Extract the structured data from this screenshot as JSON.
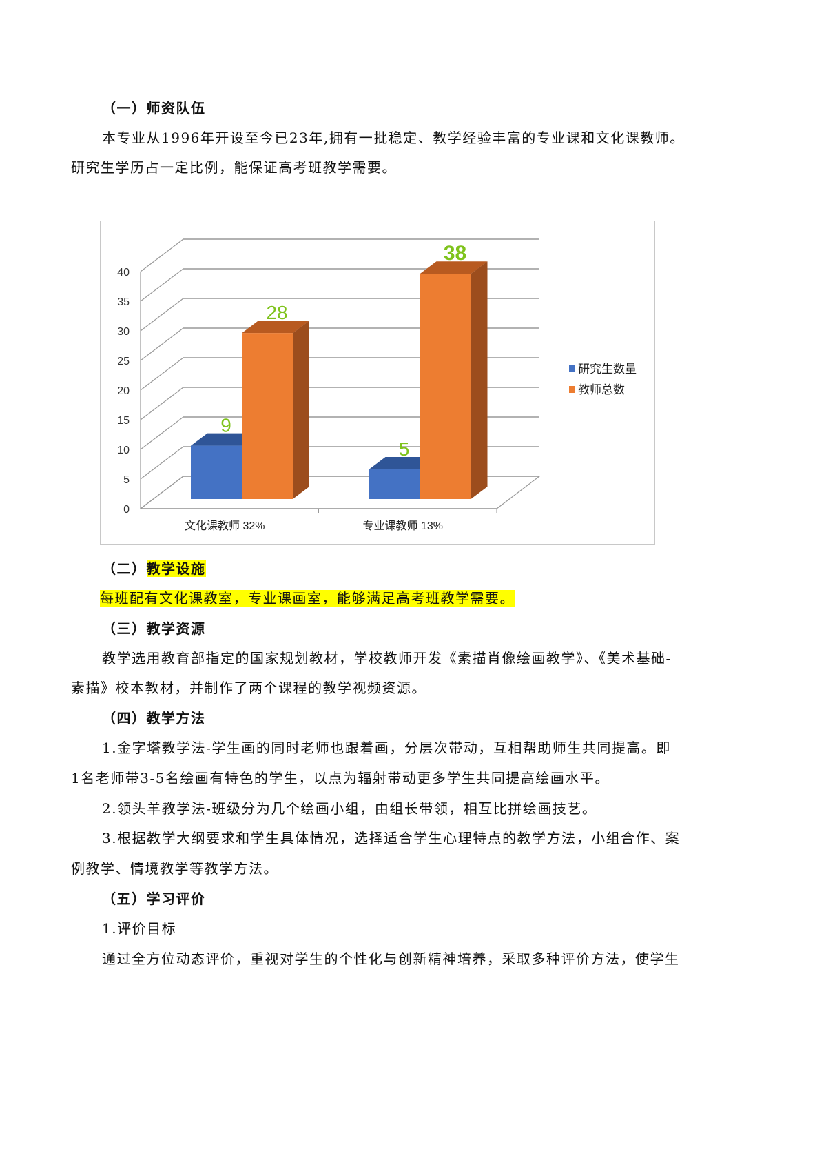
{
  "section1": {
    "heading": "（一）师资队伍",
    "lines": [
      "本专业从1996年开设至今已23年,拥有一批稳定、教学经验丰富的专业课和文化课教师。",
      "研究生学历占一定比例，能保证高考班教学需要。"
    ]
  },
  "chart_data": {
    "type": "bar",
    "style": "3d-clustered-column",
    "categories": [
      "文化课教师 32%",
      "专业课教师 13%"
    ],
    "series": [
      {
        "name": "研究生数量",
        "values": [
          9,
          5
        ],
        "color": "#4472c4"
      },
      {
        "name": "教师总数",
        "values": [
          28,
          38
        ],
        "color": "#ed7d31"
      }
    ],
    "ylim": [
      0,
      40
    ],
    "yticks": [
      0,
      5,
      10,
      15,
      20,
      25,
      30,
      35,
      40
    ],
    "grid": true,
    "legend": "right",
    "data_label_color": "#7fc31c"
  },
  "section2": {
    "heading_prefix": "（二）",
    "heading_main": "教学设施",
    "lines": [
      "每班配有文化课教室，专业课画室，能够满足高考班教学需要。"
    ]
  },
  "section3": {
    "heading": "（三）教学资源",
    "lines": [
      "教学选用教育部指定的国家规划教材，学校教师开发《素描肖像绘画教学》、《美术基础-",
      "素描》校本教材，并制作了两个课程的教学视频资源。"
    ]
  },
  "section4": {
    "heading": "（四）教学方法",
    "lines": [
      "1.金字塔教学法-学生画的同时老师也跟着画，分层次带动，互相帮助师生共同提高。即",
      "1名老师带3-5名绘画有特色的学生，以点为辐射带动更多学生共同提高绘画水平。",
      "2.领头羊教学法-班级分为几个绘画小组，由组长带领，相互比拼绘画技艺。",
      "3.根据教学大纲要求和学生具体情况，选择适合学生心理特点的教学方法，小组合作、案",
      "例教学、情境教学等教学方法。"
    ]
  },
  "section5": {
    "heading": "（五）学习评价",
    "lines": [
      "1.评价目标",
      "通过全方位动态评价，重视对学生的个性化与创新精神培养，采取多种评价方法，使学生"
    ]
  }
}
